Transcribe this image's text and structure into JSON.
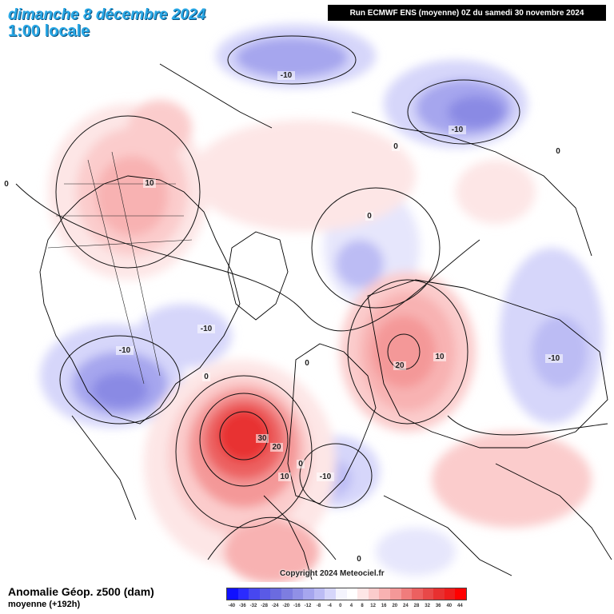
{
  "header": {
    "date_line": "dimanche 8 décembre 2024",
    "time_line": "1:00 locale",
    "run_info": "Run ECMWF ENS (moyenne) 0Z du samedi 30 novembre 2024"
  },
  "footer": {
    "field_name": "Anomalie Géop. z500 (dam)",
    "field_sub": "moyenne   (+192h)",
    "copyright": "Copyright 2024 Meteociel.fr"
  },
  "legend": {
    "labels": [
      "-40",
      "-36",
      "-32",
      "-28",
      "-24",
      "-20",
      "-16",
      "-12",
      "-8",
      "-4",
      "0",
      "4",
      "8",
      "12",
      "16",
      "20",
      "24",
      "28",
      "32",
      "36",
      "40",
      "44"
    ],
    "colors": [
      "#1010ff",
      "#2b2bff",
      "#4747f0",
      "#5a5ae6",
      "#6b6bdf",
      "#7d7de0",
      "#9090e6",
      "#a6a6ee",
      "#bcbcf4",
      "#d6d6fa",
      "#f4f4fd",
      "#ffffff",
      "#fde6e6",
      "#fbcccc",
      "#f8b2b2",
      "#f49898",
      "#f07c7c",
      "#ec6060",
      "#e84848",
      "#e83030",
      "#ee1c1c",
      "#ff0000"
    ]
  },
  "contour_labels": [
    {
      "text": "-10"
    },
    {
      "text": "-10"
    },
    {
      "text": "0"
    },
    {
      "text": "0"
    },
    {
      "text": "10"
    },
    {
      "text": "0"
    },
    {
      "text": "0"
    },
    {
      "text": "-10"
    },
    {
      "text": "-10"
    },
    {
      "text": "0"
    },
    {
      "text": "0"
    },
    {
      "text": "20"
    },
    {
      "text": "10"
    },
    {
      "text": "-10"
    },
    {
      "text": "30"
    },
    {
      "text": "20"
    },
    {
      "text": "0"
    },
    {
      "text": "10"
    },
    {
      "text": "-10"
    },
    {
      "text": "0"
    }
  ]
}
